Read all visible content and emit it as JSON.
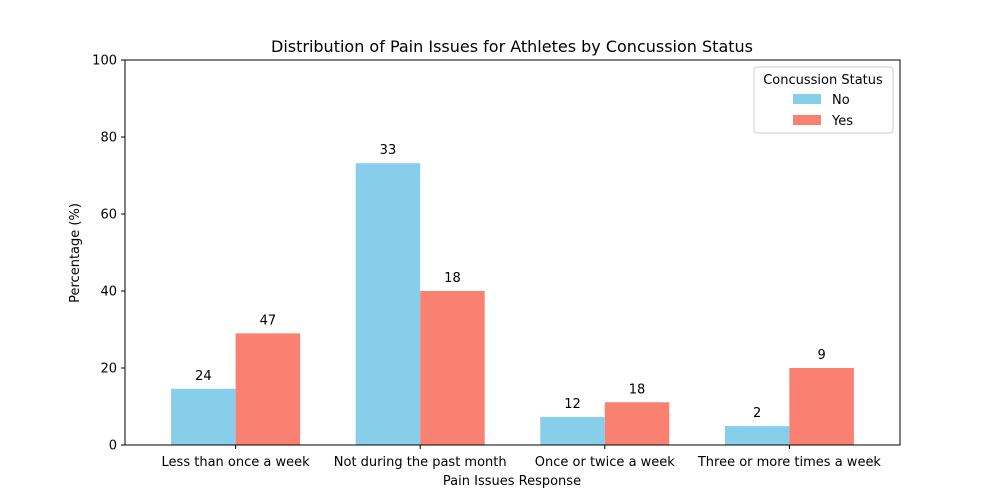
{
  "chart_data": {
    "type": "bar",
    "title": "Distribution of Pain Issues for Athletes by Concussion Status",
    "xlabel": "Pain Issues Response",
    "ylabel": "Percentage (%)",
    "ylim": [
      0,
      100
    ],
    "yticks": [
      "0",
      "20",
      "40",
      "60",
      "80",
      "100"
    ],
    "categories": [
      "Less than once a week",
      "Not during the past month",
      "Once or twice a week",
      "Three or more times a week"
    ],
    "series": [
      {
        "name": "No",
        "color": "#87ceeb",
        "values": [
          14.6,
          73.2,
          7.3,
          4.9
        ],
        "labels": [
          "24",
          "33",
          "12",
          "2"
        ]
      },
      {
        "name": "Yes",
        "color": "#fa8072",
        "values": [
          29.0,
          40.0,
          11.1,
          20.0
        ],
        "labels": [
          "47",
          "18",
          "18",
          "9"
        ]
      }
    ],
    "legend": {
      "title": "Concussion Status",
      "position": "top-right"
    },
    "grid": false
  }
}
